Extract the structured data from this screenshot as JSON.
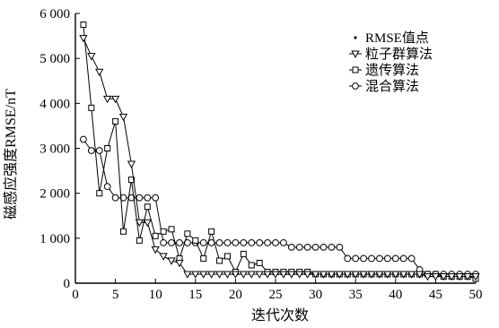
{
  "chart_data": {
    "type": "line",
    "xlabel": "迭代次数",
    "ylabel": "磁感应强度RMSE/nT",
    "xlim": [
      0,
      50
    ],
    "ylim": [
      0,
      6000
    ],
    "x_ticks": [
      0,
      5,
      10,
      15,
      20,
      25,
      30,
      35,
      40,
      45,
      50
    ],
    "y_ticks": [
      0,
      1000,
      2000,
      3000,
      4000,
      5000,
      6000
    ],
    "x_tick_labels": [
      "0",
      "5",
      "10",
      "15",
      "20",
      "25",
      "30",
      "35",
      "40",
      "45",
      "50"
    ],
    "y_tick_labels": [
      "0",
      "1 000",
      "2 000",
      "3 000",
      "4 000",
      "5 000",
      "6 000"
    ],
    "legend_position": "top-right",
    "grid": false,
    "series": [
      {
        "name": "RMSE值点",
        "marker": "dot",
        "x": [],
        "values": []
      },
      {
        "name": "粒子群算法",
        "marker": "triangle-down",
        "x": [
          1,
          2,
          3,
          4,
          5,
          6,
          7,
          8,
          9,
          10,
          11,
          12,
          13,
          14,
          15,
          16,
          17,
          18,
          19,
          20,
          21,
          22,
          23,
          24,
          25,
          26,
          27,
          28,
          29,
          30,
          31,
          32,
          33,
          34,
          35,
          36,
          37,
          38,
          39,
          40,
          41,
          42,
          43,
          44,
          45,
          46,
          47,
          48,
          49,
          50
        ],
        "values": [
          5450,
          5050,
          4700,
          4100,
          4100,
          3700,
          2650,
          1350,
          1350,
          750,
          600,
          500,
          450,
          200,
          200,
          200,
          200,
          200,
          200,
          200,
          200,
          200,
          200,
          200,
          200,
          200,
          200,
          200,
          200,
          200,
          200,
          200,
          200,
          200,
          200,
          200,
          200,
          200,
          200,
          200,
          200,
          200,
          200,
          150,
          150,
          150,
          150,
          150,
          150,
          150
        ]
      },
      {
        "name": "遗传算法",
        "marker": "square",
        "x": [
          1,
          2,
          3,
          4,
          5,
          6,
          7,
          8,
          9,
          10,
          11,
          12,
          13,
          14,
          15,
          16,
          17,
          18,
          19,
          20,
          21,
          22,
          23,
          24,
          25,
          26,
          27,
          28,
          29,
          30,
          31,
          32,
          33,
          34,
          35,
          36,
          37,
          38,
          39,
          40,
          41,
          42,
          43,
          44,
          45,
          46,
          47,
          48,
          49,
          50
        ],
        "values": [
          5750,
          3900,
          2000,
          3000,
          3600,
          1150,
          2300,
          950,
          1700,
          1050,
          1150,
          1200,
          550,
          1100,
          950,
          550,
          1150,
          500,
          600,
          250,
          650,
          400,
          450,
          250,
          250,
          250,
          250,
          250,
          250,
          200,
          200,
          200,
          200,
          200,
          200,
          200,
          200,
          200,
          200,
          200,
          200,
          200,
          200,
          200,
          200,
          150,
          150,
          150,
          150,
          100
        ]
      },
      {
        "name": "混合算法",
        "marker": "circle",
        "x": [
          1,
          2,
          3,
          4,
          5,
          6,
          7,
          8,
          9,
          10,
          11,
          12,
          13,
          14,
          15,
          16,
          17,
          18,
          19,
          20,
          21,
          22,
          23,
          24,
          25,
          26,
          27,
          28,
          29,
          30,
          31,
          32,
          33,
          34,
          35,
          36,
          37,
          38,
          39,
          40,
          41,
          42,
          43,
          44,
          45,
          46,
          47,
          48,
          49,
          50
        ],
        "values": [
          3200,
          2950,
          2950,
          2150,
          1900,
          1900,
          1900,
          1900,
          1900,
          1900,
          900,
          900,
          900,
          900,
          900,
          900,
          900,
          900,
          900,
          900,
          900,
          900,
          900,
          900,
          900,
          900,
          800,
          800,
          800,
          800,
          800,
          800,
          800,
          550,
          550,
          550,
          550,
          550,
          550,
          550,
          550,
          550,
          300,
          200,
          200,
          200,
          200,
          200,
          200,
          200
        ]
      }
    ]
  }
}
